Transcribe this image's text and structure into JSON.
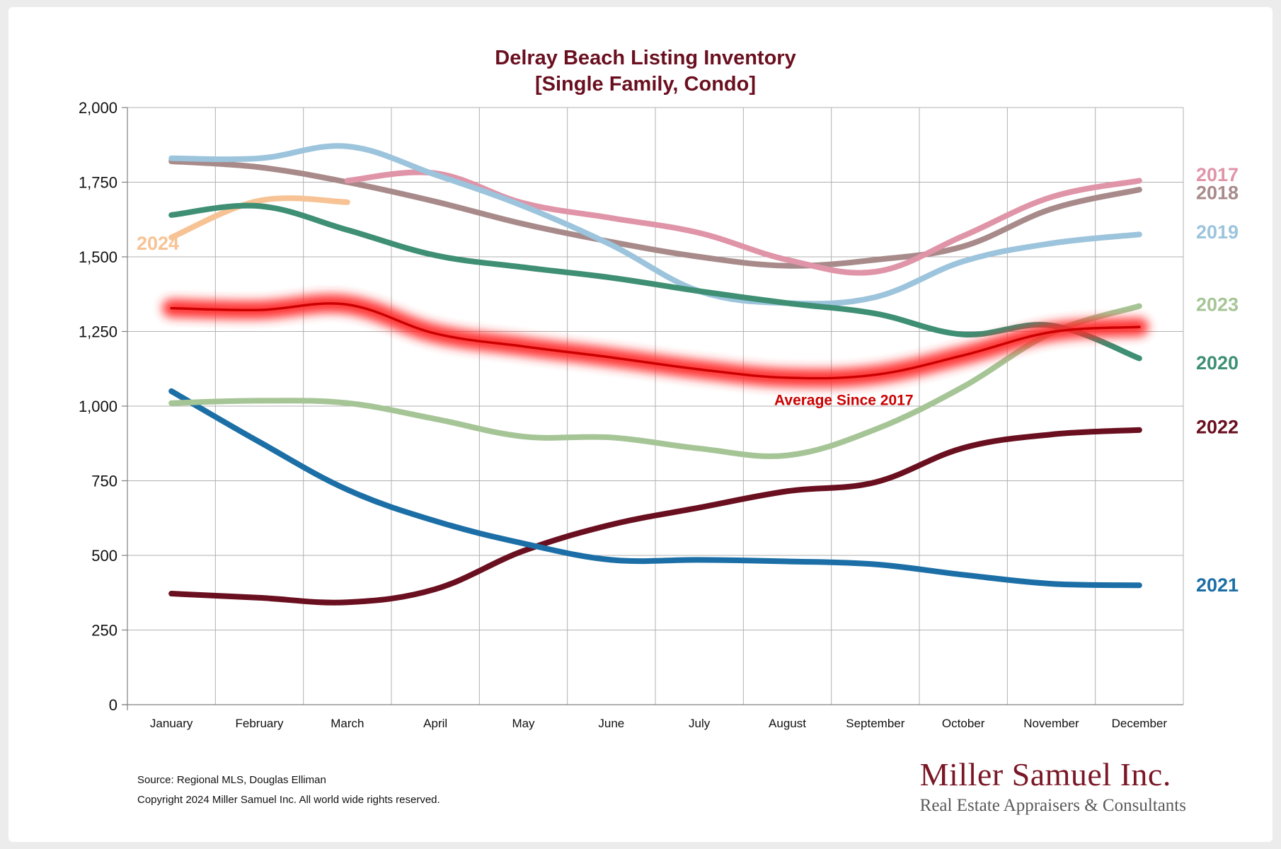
{
  "chart_data": {
    "type": "line",
    "title": [
      "Delray Beach Listing Inventory",
      "[Single Family, Condo]"
    ],
    "xlabel": "",
    "ylabel": "",
    "ylim": [
      0,
      2000
    ],
    "yticks": [
      0,
      250,
      500,
      750,
      1000,
      1250,
      1500,
      1750,
      2000
    ],
    "ytick_labels": [
      "0",
      "250",
      "500",
      "750",
      "1,000",
      "1,250",
      "1,500",
      "1,750",
      "2,000"
    ],
    "categories": [
      "January",
      "February",
      "March",
      "April",
      "May",
      "June",
      "July",
      "August",
      "September",
      "October",
      "November",
      "December"
    ],
    "grid": true,
    "series": [
      {
        "name": "2017",
        "label": "2017",
        "color": "#e094a8",
        "label_y": 1775,
        "values": [
          null,
          null,
          1755,
          1780,
          1680,
          1630,
          1580,
          1490,
          1450,
          1570,
          1700,
          1755
        ]
      },
      {
        "name": "2018",
        "label": "2018",
        "color": "#a88a8a",
        "label_y": 1715,
        "values": [
          1820,
          1800,
          1750,
          1685,
          1610,
          1550,
          1500,
          1470,
          1490,
          1535,
          1660,
          1725
        ]
      },
      {
        "name": "2019",
        "label": "2019",
        "color": "#9cc4dc",
        "label_y": 1583,
        "values": [
          1830,
          1830,
          1870,
          1775,
          1670,
          1540,
          1385,
          1345,
          1365,
          1485,
          1545,
          1575
        ]
      },
      {
        "name": "2020",
        "label": "2020",
        "color": "#3e8f74",
        "label_y": 1145,
        "values": [
          1640,
          1670,
          1590,
          1505,
          1465,
          1430,
          1385,
          1345,
          1310,
          1240,
          1270,
          1160
        ]
      },
      {
        "name": "2021",
        "label": "2021",
        "color": "#1c6fa6",
        "label_y": 400,
        "values": [
          1050,
          880,
          720,
          615,
          540,
          485,
          485,
          480,
          470,
          435,
          405,
          400
        ]
      },
      {
        "name": "2022",
        "label": "2022",
        "color": "#6a0f1f",
        "label_y": 930,
        "values": [
          372,
          358,
          343,
          387,
          515,
          603,
          660,
          715,
          745,
          860,
          905,
          920
        ]
      },
      {
        "name": "2023",
        "label": "2023",
        "color": "#a6c596",
        "label_y": 1340,
        "values": [
          1010,
          1018,
          1010,
          957,
          898,
          895,
          858,
          835,
          922,
          1065,
          1245,
          1335
        ]
      },
      {
        "name": "2024",
        "label": "2024",
        "color": "#f7c394",
        "label_y": 1545,
        "values": [
          1565,
          1688,
          1683,
          null,
          null,
          null,
          null,
          null,
          null,
          null,
          null,
          null
        ]
      },
      {
        "name": "Average Since 2017",
        "label": "Average  Since 2017",
        "color": "#cc0000",
        "glow": "#ff2a2a",
        "label_y": 1025,
        "values": [
          1328,
          1322,
          1340,
          1243,
          1200,
          1163,
          1123,
          1095,
          1105,
          1170,
          1248,
          1265
        ]
      }
    ]
  },
  "footer": {
    "source": "Source: Regional MLS, Douglas Elliman",
    "copyright": "Copyright 2024 Miller Samuel Inc.  All world wide rights reserved."
  },
  "logo": {
    "name": "Miller Samuel Inc.",
    "tagline": "Real Estate Appraisers & Consultants"
  }
}
